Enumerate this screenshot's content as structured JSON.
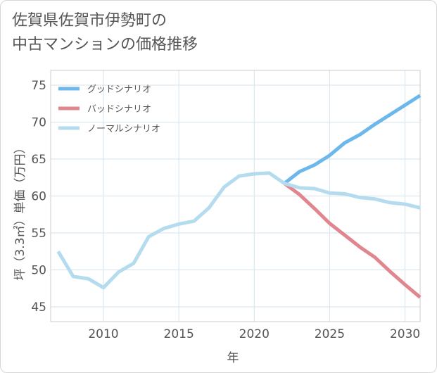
{
  "title_lines": [
    "佐賀県佐賀市伊勢町の",
    "中古マンションの価格推移"
  ],
  "chart_data": {
    "type": "line",
    "title": "佐賀県佐賀市伊勢町の中古マンションの価格推移",
    "xlabel": "年",
    "ylabel": "坪（3.3㎡）単価（万円）",
    "xlim": [
      2006.5,
      2031
    ],
    "ylim": [
      43,
      77
    ],
    "xticks": [
      2010,
      2015,
      2020,
      2025,
      2030
    ],
    "yticks": [
      45,
      50,
      55,
      60,
      65,
      70,
      75
    ],
    "grid": true,
    "legend_position": "top-left",
    "series": [
      {
        "name": "グッドシナリオ",
        "color": "#6cb8ec",
        "x": [
          2022,
          2023,
          2024,
          2025,
          2026,
          2027,
          2028,
          2029,
          2030,
          2031
        ],
        "values": [
          61.7,
          63.3,
          64.2,
          65.5,
          67.2,
          68.3,
          69.7,
          71.0,
          72.3,
          73.6
        ]
      },
      {
        "name": "バッドシナリオ",
        "color": "#e0868e",
        "x": [
          2022,
          2023,
          2024,
          2025,
          2026,
          2027,
          2028,
          2029,
          2030,
          2031
        ],
        "values": [
          61.7,
          60.2,
          58.3,
          56.3,
          54.7,
          53.1,
          51.7,
          49.8,
          48.0,
          46.3
        ]
      },
      {
        "name": "ノーマルシナリオ",
        "color": "#b4dcee",
        "x": [
          2007,
          2008,
          2009,
          2010,
          2011,
          2012,
          2013,
          2014,
          2015,
          2016,
          2017,
          2018,
          2019,
          2020,
          2021,
          2022,
          2023,
          2024,
          2025,
          2026,
          2027,
          2028,
          2029,
          2030,
          2031
        ],
        "values": [
          52.5,
          49.1,
          48.8,
          47.6,
          49.7,
          50.9,
          54.5,
          55.6,
          56.2,
          56.6,
          58.4,
          61.2,
          62.7,
          63.0,
          63.1,
          61.7,
          61.1,
          61.0,
          60.4,
          60.3,
          59.8,
          59.6,
          59.1,
          58.9,
          58.4
        ]
      }
    ]
  }
}
